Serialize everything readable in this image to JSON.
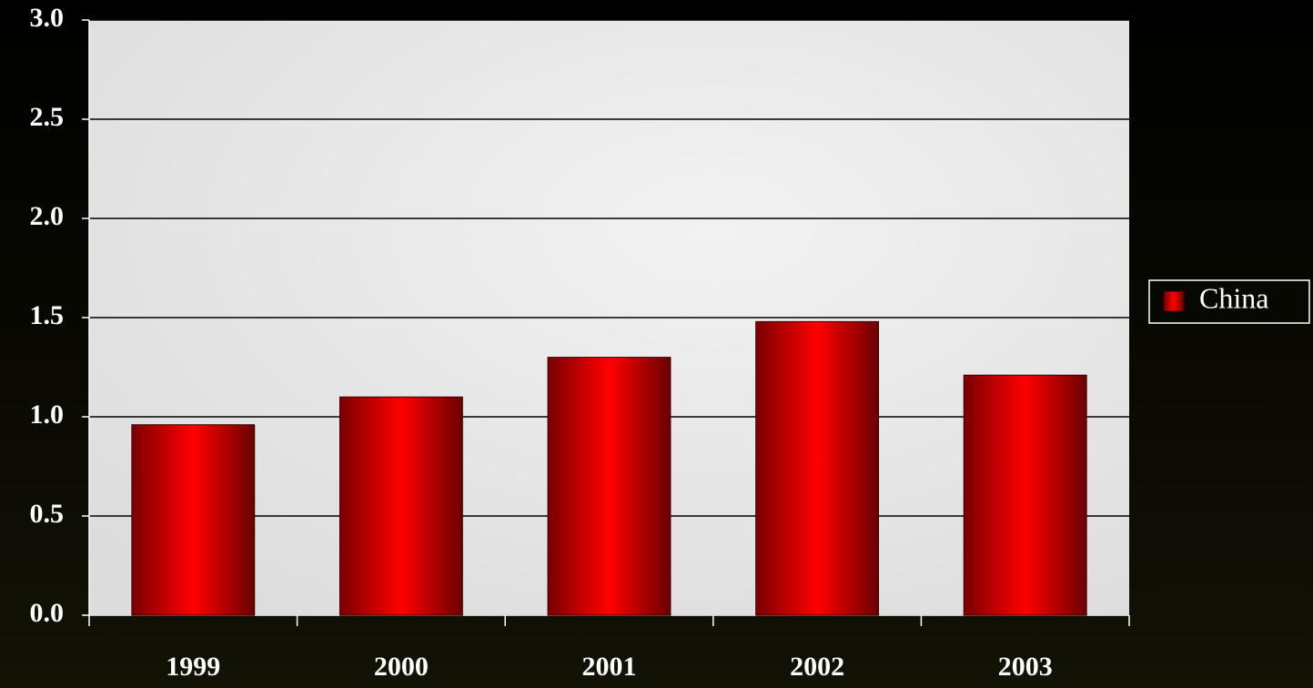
{
  "chart_data": {
    "type": "bar",
    "categories": [
      "1999",
      "2000",
      "2001",
      "2002",
      "2003"
    ],
    "series": [
      {
        "name": "China",
        "color": "#ff0000",
        "values": [
          0.96,
          1.1,
          1.3,
          1.48,
          1.21
        ]
      }
    ],
    "ylim": [
      0,
      3
    ],
    "yticks": [
      {
        "value": 0,
        "label": "0.0"
      },
      {
        "value": 0.5,
        "label": "0.5"
      },
      {
        "value": 1,
        "label": "1.0"
      },
      {
        "value": 1.5,
        "label": "1.5"
      },
      {
        "value": 2,
        "label": "2.0"
      },
      {
        "value": 2.5,
        "label": "2.5"
      },
      {
        "value": 3,
        "label": "3.0"
      }
    ],
    "grid": true,
    "legend": "right"
  }
}
